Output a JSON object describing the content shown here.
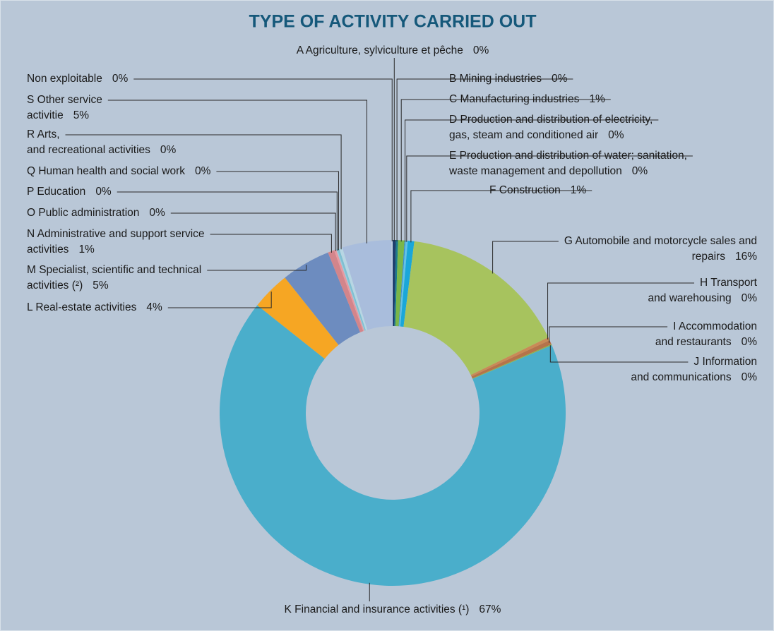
{
  "chart_data": {
    "type": "donut",
    "title": "TYPE OF ACTIVITY CARRIED OUT",
    "categories": [
      [
        "A Agriculture, sylviculture et pêche"
      ],
      [
        "B Mining industries"
      ],
      [
        "C Manufacturing industries"
      ],
      [
        "D Production and distribution of electricity,",
        "gas, steam and conditioned air"
      ],
      [
        "E Production and distribution of water; sanitation,",
        "waste management and depollution"
      ],
      [
        "F Construction"
      ],
      [
        "G Automobile and motorcycle sales and",
        "repairs"
      ],
      [
        "H Transport",
        "and warehousing"
      ],
      [
        "I Accommodation",
        "and restaurants"
      ],
      [
        "J Information",
        "and communications"
      ],
      [
        "K Financial and insurance activities (¹)"
      ],
      [
        "L Real-estate activities"
      ],
      [
        "M Specialist, scientific and technical",
        "activities (²)"
      ],
      [
        "N Administrative and support service",
        "activities"
      ],
      [
        "O Public administration"
      ],
      [
        "P Education"
      ],
      [
        "Q Human health and social work"
      ],
      [
        "R Arts,",
        "and recreational activities"
      ],
      [
        "S Other service",
        "activitie"
      ],
      [
        "Non exploitable"
      ]
    ],
    "values": [
      0.3,
      0.2,
      0.6,
      0.1,
      0.2,
      0.6,
      15.8,
      0.3,
      0.4,
      0.1,
      67.1,
      3.6,
      4.6,
      0.6,
      0.2,
      0.1,
      0.2,
      0.3,
      4.6,
      0.1
    ],
    "value_labels": [
      "0%",
      "0%",
      "1%",
      "0%",
      "0%",
      "1%",
      "16%",
      "0%",
      "0%",
      "0%",
      "67%",
      "4%",
      "5%",
      "1%",
      "0%",
      "0%",
      "0%",
      "0%",
      "5%",
      "0%"
    ],
    "colors": [
      "#1f3f6e",
      "#1c7a8c",
      "#7ab648",
      "#3a8fd0",
      "#62c3e6",
      "#1aa7d9",
      "#a7c35e",
      "#c98a56",
      "#b5734a",
      "#8fb24a",
      "#4aaecb",
      "#f6a623",
      "#6d8cbf",
      "#d3858b",
      "#e89aa0",
      "#9fcbdc",
      "#7fc0d2",
      "#b7d6e3",
      "#a9bddc",
      "#c5d3e6"
    ]
  }
}
